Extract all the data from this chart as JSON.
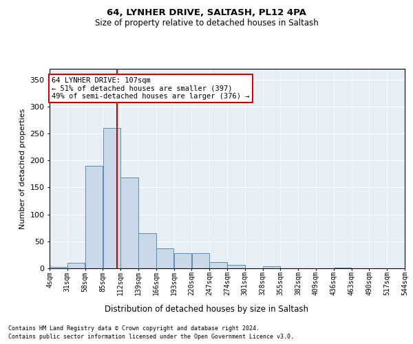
{
  "title1": "64, LYNHER DRIVE, SALTASH, PL12 4PA",
  "title2": "Size of property relative to detached houses in Saltash",
  "xlabel": "Distribution of detached houses by size in Saltash",
  "ylabel": "Number of detached properties",
  "footnote1": "Contains HM Land Registry data © Crown copyright and database right 2024.",
  "footnote2": "Contains public sector information licensed under the Open Government Licence v3.0.",
  "annotation_line1": "64 LYNHER DRIVE: 107sqm",
  "annotation_line2": "← 51% of detached houses are smaller (397)",
  "annotation_line3": "49% of semi-detached houses are larger (376) →",
  "bar_color": "#c9d9e8",
  "bar_edge_color": "#5a8db5",
  "vline_color": "#cc0000",
  "vline_x": 107,
  "bins": [
    4,
    31,
    58,
    85,
    112,
    139,
    166,
    193,
    220,
    247,
    274,
    301,
    328,
    355,
    382,
    409,
    436,
    463,
    490,
    517,
    544
  ],
  "bin_labels": [
    "4sqm",
    "31sqm",
    "58sqm",
    "85sqm",
    "112sqm",
    "139sqm",
    "166sqm",
    "193sqm",
    "220sqm",
    "247sqm",
    "274sqm",
    "301sqm",
    "328sqm",
    "355sqm",
    "382sqm",
    "409sqm",
    "436sqm",
    "463sqm",
    "490sqm",
    "517sqm",
    "544sqm"
  ],
  "values": [
    2,
    10,
    190,
    260,
    168,
    65,
    37,
    28,
    28,
    11,
    6,
    0,
    4,
    0,
    0,
    0,
    1,
    0,
    0,
    0,
    1
  ],
  "ylim": [
    0,
    370
  ],
  "yticks": [
    0,
    50,
    100,
    150,
    200,
    250,
    300,
    350
  ],
  "background_color": "#e8eef5"
}
